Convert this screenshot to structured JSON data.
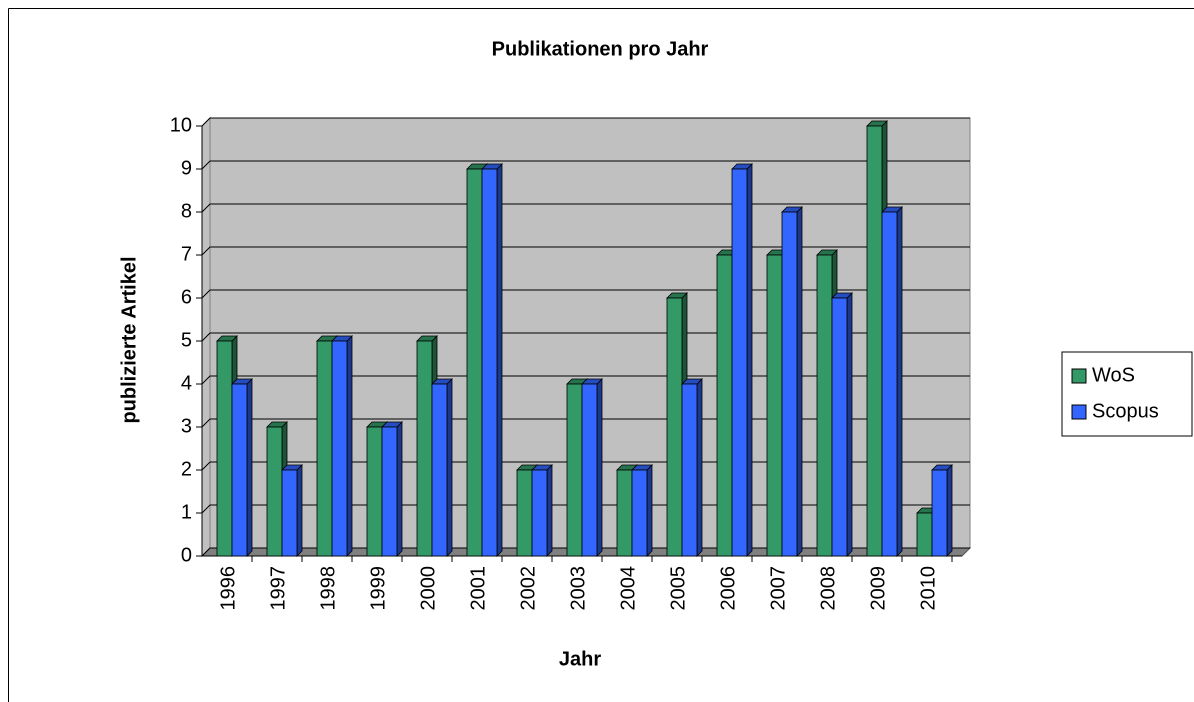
{
  "chart_data": {
    "type": "bar3d",
    "title": "Publikationen pro Jahr",
    "x_label": "Jahr",
    "y_label": "publizierte Artikel",
    "categories": [
      "1996",
      "1997",
      "1998",
      "1999",
      "2000",
      "2001",
      "2002",
      "2003",
      "2004",
      "2005",
      "2006",
      "2007",
      "2008",
      "2009",
      "2010"
    ],
    "series": [
      {
        "name": "WoS",
        "color": "#339966",
        "values": [
          5,
          3,
          5,
          3,
          5,
          9,
          2,
          4,
          2,
          6,
          7,
          7,
          7,
          10,
          1
        ]
      },
      {
        "name": "Scopus",
        "color": "#3366ff",
        "values": [
          4,
          2,
          5,
          3,
          4,
          9,
          2,
          4,
          2,
          4,
          9,
          8,
          6,
          8,
          2
        ]
      }
    ],
    "ylim": [
      0,
      10
    ],
    "yticks": [
      0,
      1,
      2,
      3,
      4,
      5,
      6,
      7,
      8,
      9,
      10
    ],
    "grid": true,
    "legend": "right"
  }
}
